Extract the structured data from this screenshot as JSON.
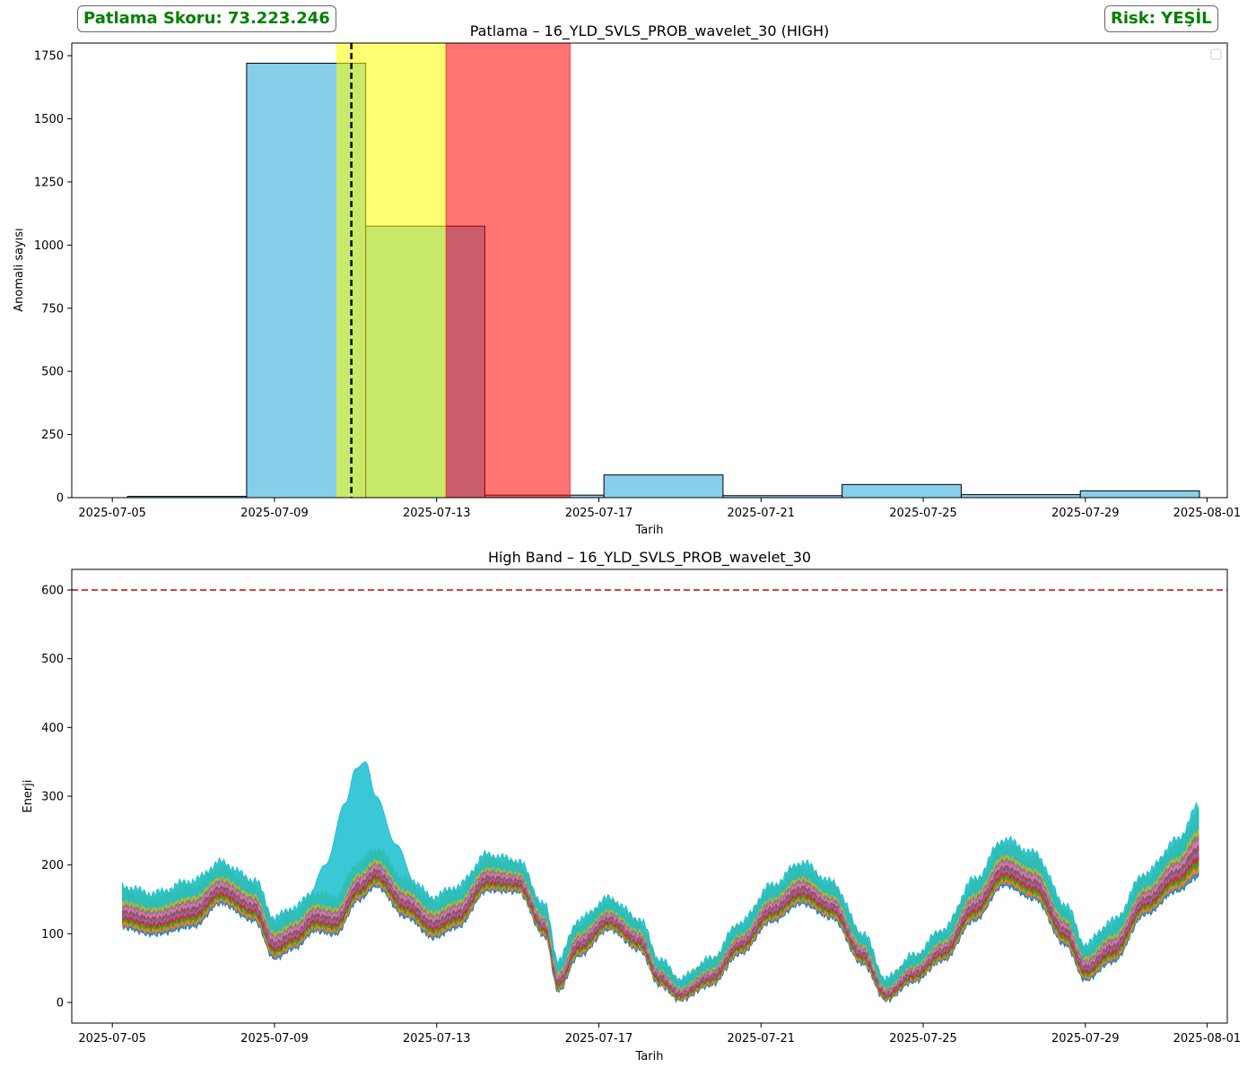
{
  "badges": {
    "score": "Patlama Skoru: 73.223.246",
    "risk": "Risk: YEŞİL",
    "text_color": "#008000"
  },
  "chart_data": [
    {
      "type": "bar",
      "title": "Patlama – 16_YLD_SVLS_PROB_wavelet_30 (HIGH)",
      "xlabel": "Tarih",
      "ylabel": "Anomali sayısı",
      "xlim": [
        "2025-07-04T00:00",
        "2025-08-01T12:00"
      ],
      "ylim": [
        0,
        1800
      ],
      "x_ticks": [
        "2025-07-05",
        "2025-07-09",
        "2025-07-13",
        "2025-07-17",
        "2025-07-21",
        "2025-07-25",
        "2025-07-29",
        "2025-08-01"
      ],
      "y_ticks": [
        0,
        250,
        500,
        750,
        1000,
        1250,
        1500,
        1750
      ],
      "bar_color": "#87ceeb",
      "bins": [
        {
          "start": "2025-07-05T09:00",
          "end": "2025-07-08T07:30",
          "value": 5
        },
        {
          "start": "2025-07-08T07:30",
          "end": "2025-07-11T06:00",
          "value": 1720
        },
        {
          "start": "2025-07-11T06:00",
          "end": "2025-07-14T04:30",
          "value": 1075
        },
        {
          "start": "2025-07-14T04:30",
          "end": "2025-07-17T03:00",
          "value": 10
        },
        {
          "start": "2025-07-17T03:00",
          "end": "2025-07-20T01:30",
          "value": 90
        },
        {
          "start": "2025-07-20T01:30",
          "end": "2025-07-23T00:00",
          "value": 8
        },
        {
          "start": "2025-07-23T00:00",
          "end": "2025-07-25T22:30",
          "value": 52
        },
        {
          "start": "2025-07-25T22:30",
          "end": "2025-07-28T21:00",
          "value": 12
        },
        {
          "start": "2025-07-28T21:00",
          "end": "2025-07-31T19:30",
          "value": 27
        }
      ],
      "spans": [
        {
          "start": "2025-07-10T13:00",
          "end": "2025-07-13T05:30",
          "color": "#ffff00"
        },
        {
          "start": "2025-07-13T05:30",
          "end": "2025-07-16T07:00",
          "color": "#ff0000"
        }
      ],
      "vline": {
        "x": "2025-07-10T21:30",
        "color": "#000000",
        "style": "dashed"
      },
      "legend": "top-right"
    },
    {
      "type": "line",
      "title": "High Band – 16_YLD_SVLS_PROB_wavelet_30",
      "xlabel": "Tarih",
      "ylabel": "Enerji",
      "xlim": [
        "2025-07-04T00:00",
        "2025-08-01T12:00"
      ],
      "ylim": [
        -30,
        630
      ],
      "x_ticks": [
        "2025-07-05",
        "2025-07-09",
        "2025-07-13",
        "2025-07-17",
        "2025-07-21",
        "2025-07-25",
        "2025-07-29",
        "2025-08-01"
      ],
      "y_ticks": [
        0,
        100,
        200,
        300,
        400,
        500,
        600
      ],
      "threshold": {
        "y": 600,
        "color": "#d62728",
        "style": "dashed"
      },
      "band_profile": {
        "x": [
          "2025-07-05T06:00",
          "2025-07-06T00:00",
          "2025-07-07T00:00",
          "2025-07-07T16:00",
          "2025-07-08T12:00",
          "2025-07-09T00:00",
          "2025-07-09T12:00",
          "2025-07-10T00:00",
          "2025-07-10T12:00",
          "2025-07-11T02:00",
          "2025-07-11T12:00",
          "2025-07-12T06:00",
          "2025-07-12T22:00",
          "2025-07-13T12:00",
          "2025-07-14T06:00",
          "2025-07-15T00:00",
          "2025-07-15T16:00",
          "2025-07-16T00:00",
          "2025-07-16T12:00",
          "2025-07-17T06:00",
          "2025-07-18T00:00",
          "2025-07-18T12:00",
          "2025-07-19T00:00",
          "2025-07-19T18:00",
          "2025-07-20T12:00",
          "2025-07-21T06:00",
          "2025-07-22T00:00",
          "2025-07-22T18:00",
          "2025-07-23T12:00",
          "2025-07-24T02:00",
          "2025-07-24T18:00",
          "2025-07-25T12:00",
          "2025-07-26T06:00",
          "2025-07-27T00:00",
          "2025-07-27T18:00",
          "2025-07-28T12:00",
          "2025-07-29T00:00",
          "2025-07-29T16:00",
          "2025-07-30T12:00",
          "2025-07-31T06:00",
          "2025-07-31T19:00"
        ],
        "mid": [
          140,
          130,
          145,
          175,
          150,
          95,
          110,
          135,
          130,
          180,
          200,
          155,
          125,
          140,
          190,
          185,
          120,
          40,
          95,
          130,
          100,
          45,
          20,
          45,
          95,
          145,
          175,
          150,
          80,
          20,
          50,
          85,
          150,
          205,
          185,
          115,
          60,
          90,
          160,
          200,
          235
        ],
        "spread": [
          40,
          40,
          45,
          40,
          40,
          40,
          40,
          40,
          40,
          40,
          40,
          40,
          40,
          40,
          35,
          30,
          30,
          30,
          35,
          30,
          30,
          25,
          20,
          25,
          30,
          35,
          40,
          35,
          30,
          20,
          25,
          30,
          40,
          45,
          45,
          40,
          35,
          40,
          40,
          50,
          70
        ],
        "spike": {
          "x": [
            "2025-07-09T18:00",
            "2025-07-10T06:00",
            "2025-07-10T18:00",
            "2025-07-11T00:00",
            "2025-07-11T06:00",
            "2025-07-11T12:00",
            "2025-07-12T00:00",
            "2025-07-12T12:00"
          ],
          "upper": [
            140,
            200,
            290,
            340,
            350,
            300,
            230,
            170
          ]
        }
      },
      "series_colors": [
        "#1f77b4",
        "#ff7f0e",
        "#2ca02c",
        "#d62728",
        "#9467bd",
        "#8c564b",
        "#e377c2",
        "#7f7f7f",
        "#bcbd22",
        "#17becf"
      ]
    }
  ]
}
